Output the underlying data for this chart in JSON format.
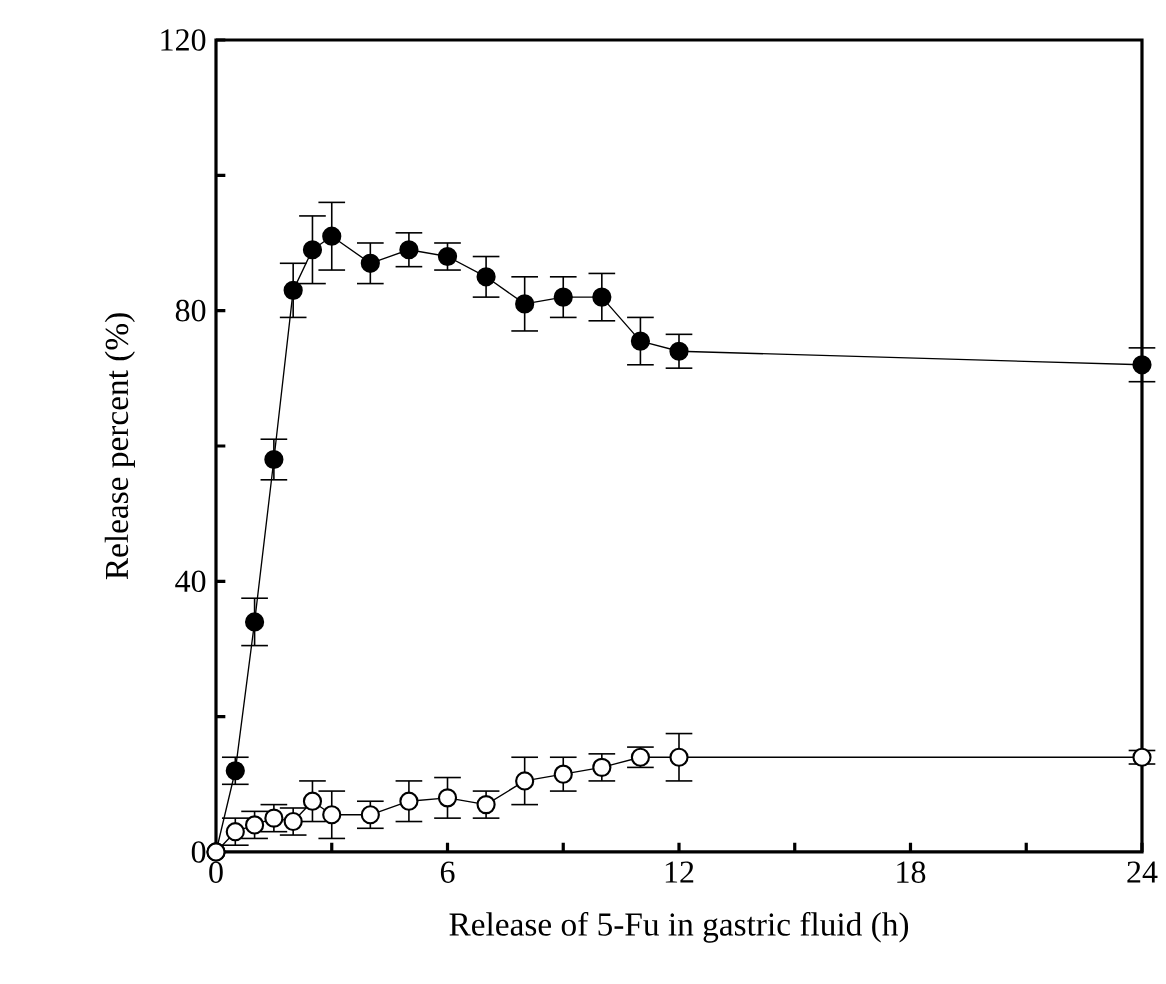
{
  "chart_data": {
    "type": "line",
    "xlabel": "Release of 5-Fu in gastric fluid (h)",
    "ylabel": "Release percent (%)",
    "xlim": [
      0,
      24
    ],
    "ylim": [
      0,
      120
    ],
    "xticks": [
      0,
      {
        "value": 3,
        "label": null
      },
      6,
      {
        "value": 9,
        "label": null
      },
      12,
      {
        "value": 15,
        "label": null
      },
      18,
      {
        "value": 21,
        "label": null
      },
      24
    ],
    "yticks": [
      0,
      {
        "value": 20,
        "label": null
      },
      40,
      {
        "value": 60,
        "label": null
      },
      80,
      {
        "value": 100,
        "label": null
      },
      120
    ],
    "marker": "circle",
    "line_style": "solid",
    "x": [
      0,
      0.5,
      1,
      1.5,
      2,
      2.5,
      3,
      4,
      5,
      6,
      7,
      8,
      9,
      10,
      11,
      12,
      24
    ],
    "series": [
      {
        "color": "#000000",
        "values": [
          0,
          12,
          34,
          58,
          83,
          89,
          91,
          87,
          89,
          88,
          85,
          81,
          82,
          82,
          75.5,
          74,
          72
        ],
        "errors": [
          null,
          2,
          3.5,
          3,
          4,
          5,
          5,
          3,
          2.5,
          2,
          3,
          4,
          3,
          3.5,
          3.5,
          2.5,
          2.5
        ]
      },
      {
        "color": "#ffffff",
        "values": [
          0,
          3,
          4,
          5,
          4.5,
          7.5,
          5.5,
          5.5,
          7.5,
          8,
          7,
          10.5,
          11.5,
          12.5,
          14,
          14,
          14
        ],
        "errors": [
          null,
          2,
          2,
          2,
          2,
          3,
          3.5,
          2,
          3,
          3,
          2,
          3.5,
          2.5,
          2,
          1.5,
          3.5,
          1
        ]
      }
    ]
  }
}
